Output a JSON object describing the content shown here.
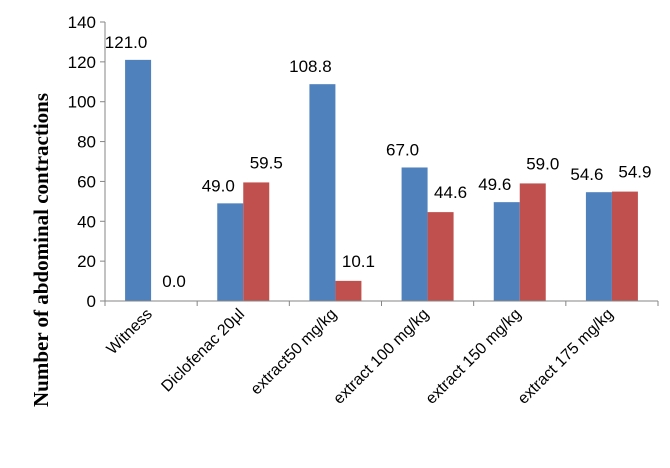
{
  "chart_data": {
    "type": "bar",
    "ylabel": "Number of abdominal  contractions",
    "xlabel": "",
    "title": "",
    "ylim": [
      0,
      140
    ],
    "yticks": [
      "0",
      "20",
      "40",
      "60",
      "80",
      "100",
      "120",
      "140"
    ],
    "grid": false,
    "legend": "none",
    "categories": [
      "Witness",
      "Diclofenac 20µl",
      "extract50 mg/kg",
      "extract 100 mg/kg",
      "extract 150 mg/kg",
      "extract 175 mg/kg"
    ],
    "series": [
      {
        "color": "#4F81BD",
        "values": [
          121.0,
          49.0,
          108.8,
          67.0,
          49.6,
          54.6
        ],
        "labels": [
          "121.0",
          "49.0",
          "108.8",
          "67.0",
          "49.6",
          "54.6"
        ]
      },
      {
        "color": "#C0504D",
        "values": [
          0.0,
          59.5,
          10.1,
          44.6,
          59.0,
          54.9
        ],
        "labels": [
          "0.0",
          "59.5",
          "10.1",
          "44.6",
          "59.0",
          "54.9"
        ]
      }
    ]
  }
}
